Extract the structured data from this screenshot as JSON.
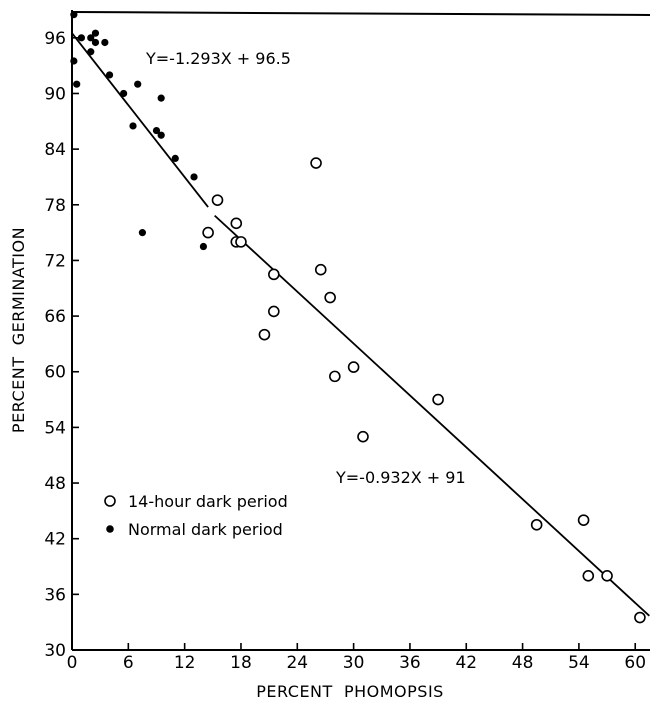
{
  "chart_data": {
    "type": "scatter",
    "title": "",
    "xlabel": "PERCENT  PHOMOPSIS",
    "ylabel": "PERCENT  GERMINATION",
    "xlim": [
      0,
      62
    ],
    "ylim": [
      30,
      99
    ],
    "xticks": [
      0,
      6,
      12,
      18,
      24,
      30,
      36,
      42,
      48,
      54,
      60
    ],
    "yticks": [
      30,
      36,
      42,
      48,
      54,
      60,
      66,
      72,
      78,
      84,
      90,
      96
    ],
    "x_tick_labels": [
      "0",
      "6",
      "12",
      "18",
      "24",
      "30",
      "36",
      "42",
      "48",
      "54",
      "60"
    ],
    "y_tick_labels": [
      "30",
      "36",
      "42",
      "48",
      "54",
      "60",
      "66",
      "72",
      "78",
      "84",
      "90",
      "96"
    ],
    "grid": false,
    "legend_position": "lower-left",
    "series": [
      {
        "name": "14-hour dark period",
        "marker": "open-circle",
        "points": [
          [
            15.5,
            78.5
          ],
          [
            14.5,
            75.0
          ],
          [
            17.5,
            76.0
          ],
          [
            17.5,
            74.0
          ],
          [
            18.0,
            74.0
          ],
          [
            26.0,
            82.5
          ],
          [
            26.5,
            71.0
          ],
          [
            21.5,
            70.5
          ],
          [
            27.5,
            68.0
          ],
          [
            21.5,
            66.5
          ],
          [
            20.5,
            64.0
          ],
          [
            30.0,
            60.5
          ],
          [
            28.0,
            59.5
          ],
          [
            39.0,
            57.0
          ],
          [
            31.0,
            53.0
          ],
          [
            49.5,
            43.5
          ],
          [
            54.5,
            44.0
          ],
          [
            55.0,
            38.0
          ],
          [
            57.0,
            38.0
          ],
          [
            60.5,
            33.5
          ]
        ]
      },
      {
        "name": "Normal dark period",
        "marker": "filled-circle",
        "points": [
          [
            0.2,
            98.5
          ],
          [
            0.2,
            93.5
          ],
          [
            1.0,
            96.0
          ],
          [
            2.0,
            96.0
          ],
          [
            2.5,
            96.5
          ],
          [
            2.5,
            95.5
          ],
          [
            2.0,
            94.5
          ],
          [
            3.5,
            95.5
          ],
          [
            0.5,
            91.0
          ],
          [
            4.0,
            92.0
          ],
          [
            5.5,
            90.0
          ],
          [
            7.0,
            91.0
          ],
          [
            9.5,
            89.5
          ],
          [
            9.0,
            86.0
          ],
          [
            9.5,
            85.5
          ],
          [
            6.5,
            86.5
          ],
          [
            11.0,
            83.0
          ],
          [
            13.0,
            81.0
          ],
          [
            7.5,
            75.0
          ],
          [
            14.0,
            73.5
          ]
        ]
      }
    ],
    "fits": [
      {
        "label": "Y=-1.293X + 96.5",
        "slope": -1.293,
        "intercept": 96.5,
        "x_range": [
          0,
          14.5
        ]
      },
      {
        "label": "Y=-0.932X + 91",
        "slope": -0.932,
        "intercept": 91,
        "x_range": [
          15.2,
          61.5
        ]
      }
    ]
  }
}
